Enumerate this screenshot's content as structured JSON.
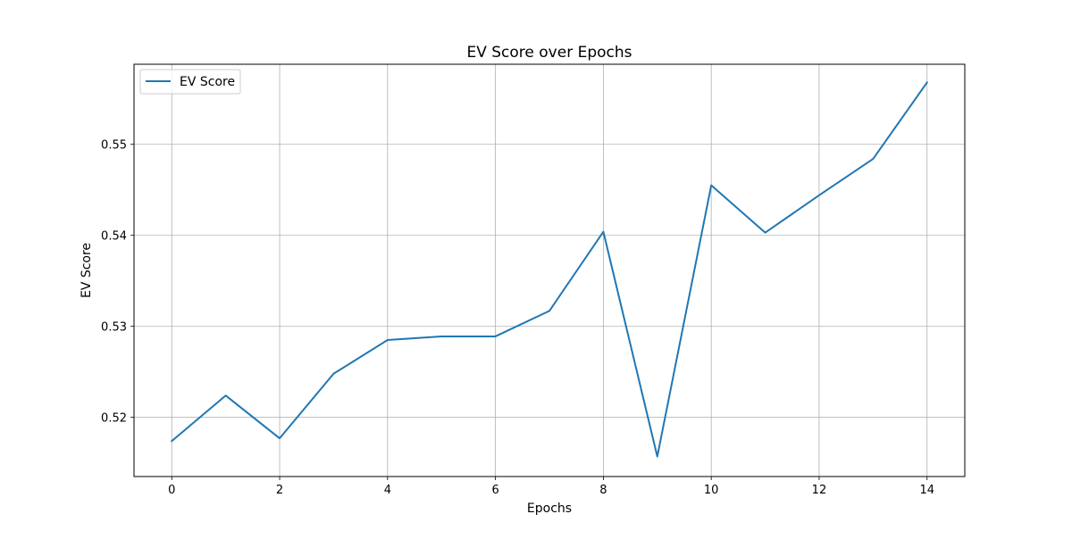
{
  "chart_data": {
    "type": "line",
    "title": "EV Score over Epochs",
    "xlabel": "Epochs",
    "ylabel": "EV Score",
    "xlim": [
      -0.7,
      14.7
    ],
    "ylim": [
      0.5135,
      0.5588
    ],
    "grid": true,
    "legend_position": "top-left",
    "x_ticks": [
      0,
      2,
      4,
      6,
      8,
      10,
      12,
      14
    ],
    "x_tick_labels": [
      "0",
      "2",
      "4",
      "6",
      "8",
      "10",
      "12",
      "14"
    ],
    "y_ticks": [
      0.52,
      0.53,
      0.54,
      0.55
    ],
    "y_tick_labels": [
      "0.52",
      "0.53",
      "0.54",
      "0.55"
    ],
    "series": [
      {
        "name": "EV Score",
        "color": "#1f77b4",
        "x": [
          0,
          1,
          2,
          3,
          4,
          5,
          6,
          7,
          8,
          9,
          10,
          11,
          12,
          13,
          14
        ],
        "y": [
          0.5174,
          0.5224,
          0.5177,
          0.5248,
          0.5285,
          0.5289,
          0.5289,
          0.5317,
          0.5404,
          0.5157,
          0.5455,
          0.5403,
          0.5444,
          0.5484,
          0.5568
        ]
      }
    ]
  }
}
